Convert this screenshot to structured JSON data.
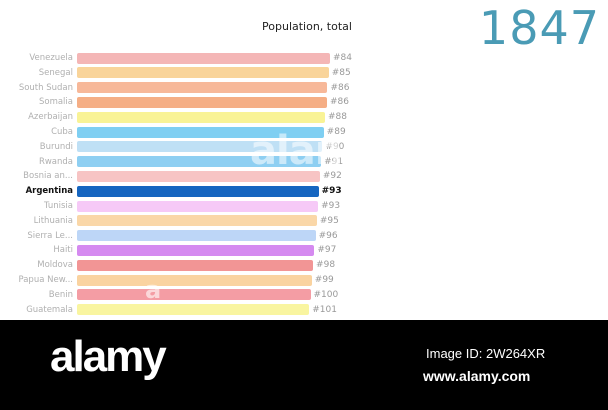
{
  "chart_data": {
    "type": "bar",
    "title": "Population, total",
    "year": "1847",
    "highlight": "Argentina",
    "rows": [
      {
        "name": "Venezuela",
        "rank": "#84",
        "value": 100,
        "color": "#f4b6b6"
      },
      {
        "name": "Senegal",
        "rank": "#85",
        "value": 99.5,
        "color": "#f9d49a"
      },
      {
        "name": "South Sudan",
        "rank": "#86",
        "value": 99.0,
        "color": "#f7b899"
      },
      {
        "name": "Somalia",
        "rank": "#86",
        "value": 98.8,
        "color": "#f5ae85"
      },
      {
        "name": "Azerbaijan",
        "rank": "#88",
        "value": 98.0,
        "color": "#f9f396"
      },
      {
        "name": "Cuba",
        "rank": "#89",
        "value": 97.5,
        "color": "#7fcff2"
      },
      {
        "name": "Burundi",
        "rank": "#90",
        "value": 97.0,
        "color": "#bfe0f5"
      },
      {
        "name": "Rwanda",
        "rank": "#91",
        "value": 96.5,
        "color": "#8ecff2"
      },
      {
        "name": "Bosnia an...",
        "rank": "#92",
        "value": 96.0,
        "color": "#f7c4c4"
      },
      {
        "name": "Argentina",
        "rank": "#93",
        "value": 95.5,
        "color": "#1565c0"
      },
      {
        "name": "Tunisia",
        "rank": "#93",
        "value": 95.3,
        "color": "#f6c9f7"
      },
      {
        "name": "Lithuania",
        "rank": "#95",
        "value": 94.8,
        "color": "#fad7a8"
      },
      {
        "name": "Sierra Le...",
        "rank": "#96",
        "value": 94.3,
        "color": "#bdd6f7"
      },
      {
        "name": "Haiti",
        "rank": "#97",
        "value": 93.8,
        "color": "#d58af0"
      },
      {
        "name": "Moldova",
        "rank": "#98",
        "value": 93.3,
        "color": "#f29595"
      },
      {
        "name": "Papua New...",
        "rank": "#99",
        "value": 92.8,
        "color": "#fad3a0"
      },
      {
        "name": "Benin",
        "rank": "#100",
        "value": 92.3,
        "color": "#f49da4"
      },
      {
        "name": "Guatemala",
        "rank": "#101",
        "value": 91.8,
        "color": "#f9f5a0"
      }
    ]
  },
  "watermark": {
    "mid": "alan",
    "small": "a"
  },
  "footer": {
    "logo": "alamy",
    "image_id": "Image ID: 2W264XR",
    "site": "www.alamy.com"
  }
}
